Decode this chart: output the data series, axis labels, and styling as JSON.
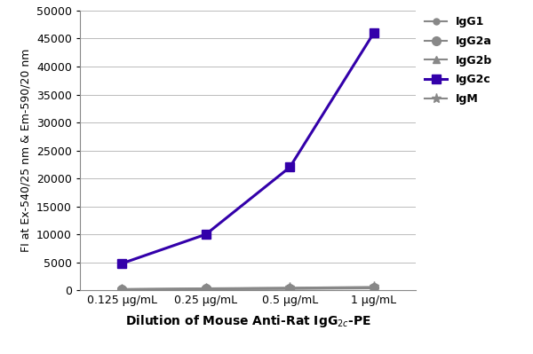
{
  "x_labels": [
    "0.125 μg/mL",
    "0.25 μg/mL",
    "0.5 μg/mL",
    "1 μg/mL"
  ],
  "x_positions": [
    0,
    1,
    2,
    3
  ],
  "series": [
    {
      "name": "IgG1",
      "values": [
        150,
        200,
        250,
        350
      ],
      "color": "#888888",
      "marker": "o",
      "marker_size": 5,
      "linewidth": 1.5,
      "linestyle": "-"
    },
    {
      "name": "IgG2a",
      "values": [
        200,
        300,
        400,
        500
      ],
      "color": "#888888",
      "marker": "o",
      "marker_size": 7,
      "linewidth": 1.5,
      "linestyle": "-"
    },
    {
      "name": "IgG2b",
      "values": [
        150,
        200,
        300,
        400
      ],
      "color": "#888888",
      "marker": "^",
      "marker_size": 6,
      "linewidth": 1.5,
      "linestyle": "-"
    },
    {
      "name": "IgG2c",
      "values": [
        4800,
        10000,
        22000,
        46000
      ],
      "color": "#3300aa",
      "marker": "s",
      "marker_size": 7,
      "linewidth": 2.2,
      "linestyle": "-"
    },
    {
      "name": "IgM",
      "values": [
        200,
        350,
        450,
        600
      ],
      "color": "#888888",
      "marker": "*",
      "marker_size": 8,
      "linewidth": 1.5,
      "linestyle": "-"
    }
  ],
  "ylabel": "FI at Ex-540/25 nm & Em-590/20 nm",
  "xlabel": "Dilution of Mouse Anti-Rat IgG$_{2c}$-PE",
  "ylim": [
    0,
    50000
  ],
  "yticks": [
    0,
    5000,
    10000,
    15000,
    20000,
    25000,
    30000,
    35000,
    40000,
    45000,
    50000
  ],
  "background_color": "#ffffff",
  "grid_color": "#bbbbbb",
  "legend_fontsize": 9,
  "ylabel_fontsize": 9,
  "xlabel_fontsize": 10,
  "tick_fontsize": 9
}
